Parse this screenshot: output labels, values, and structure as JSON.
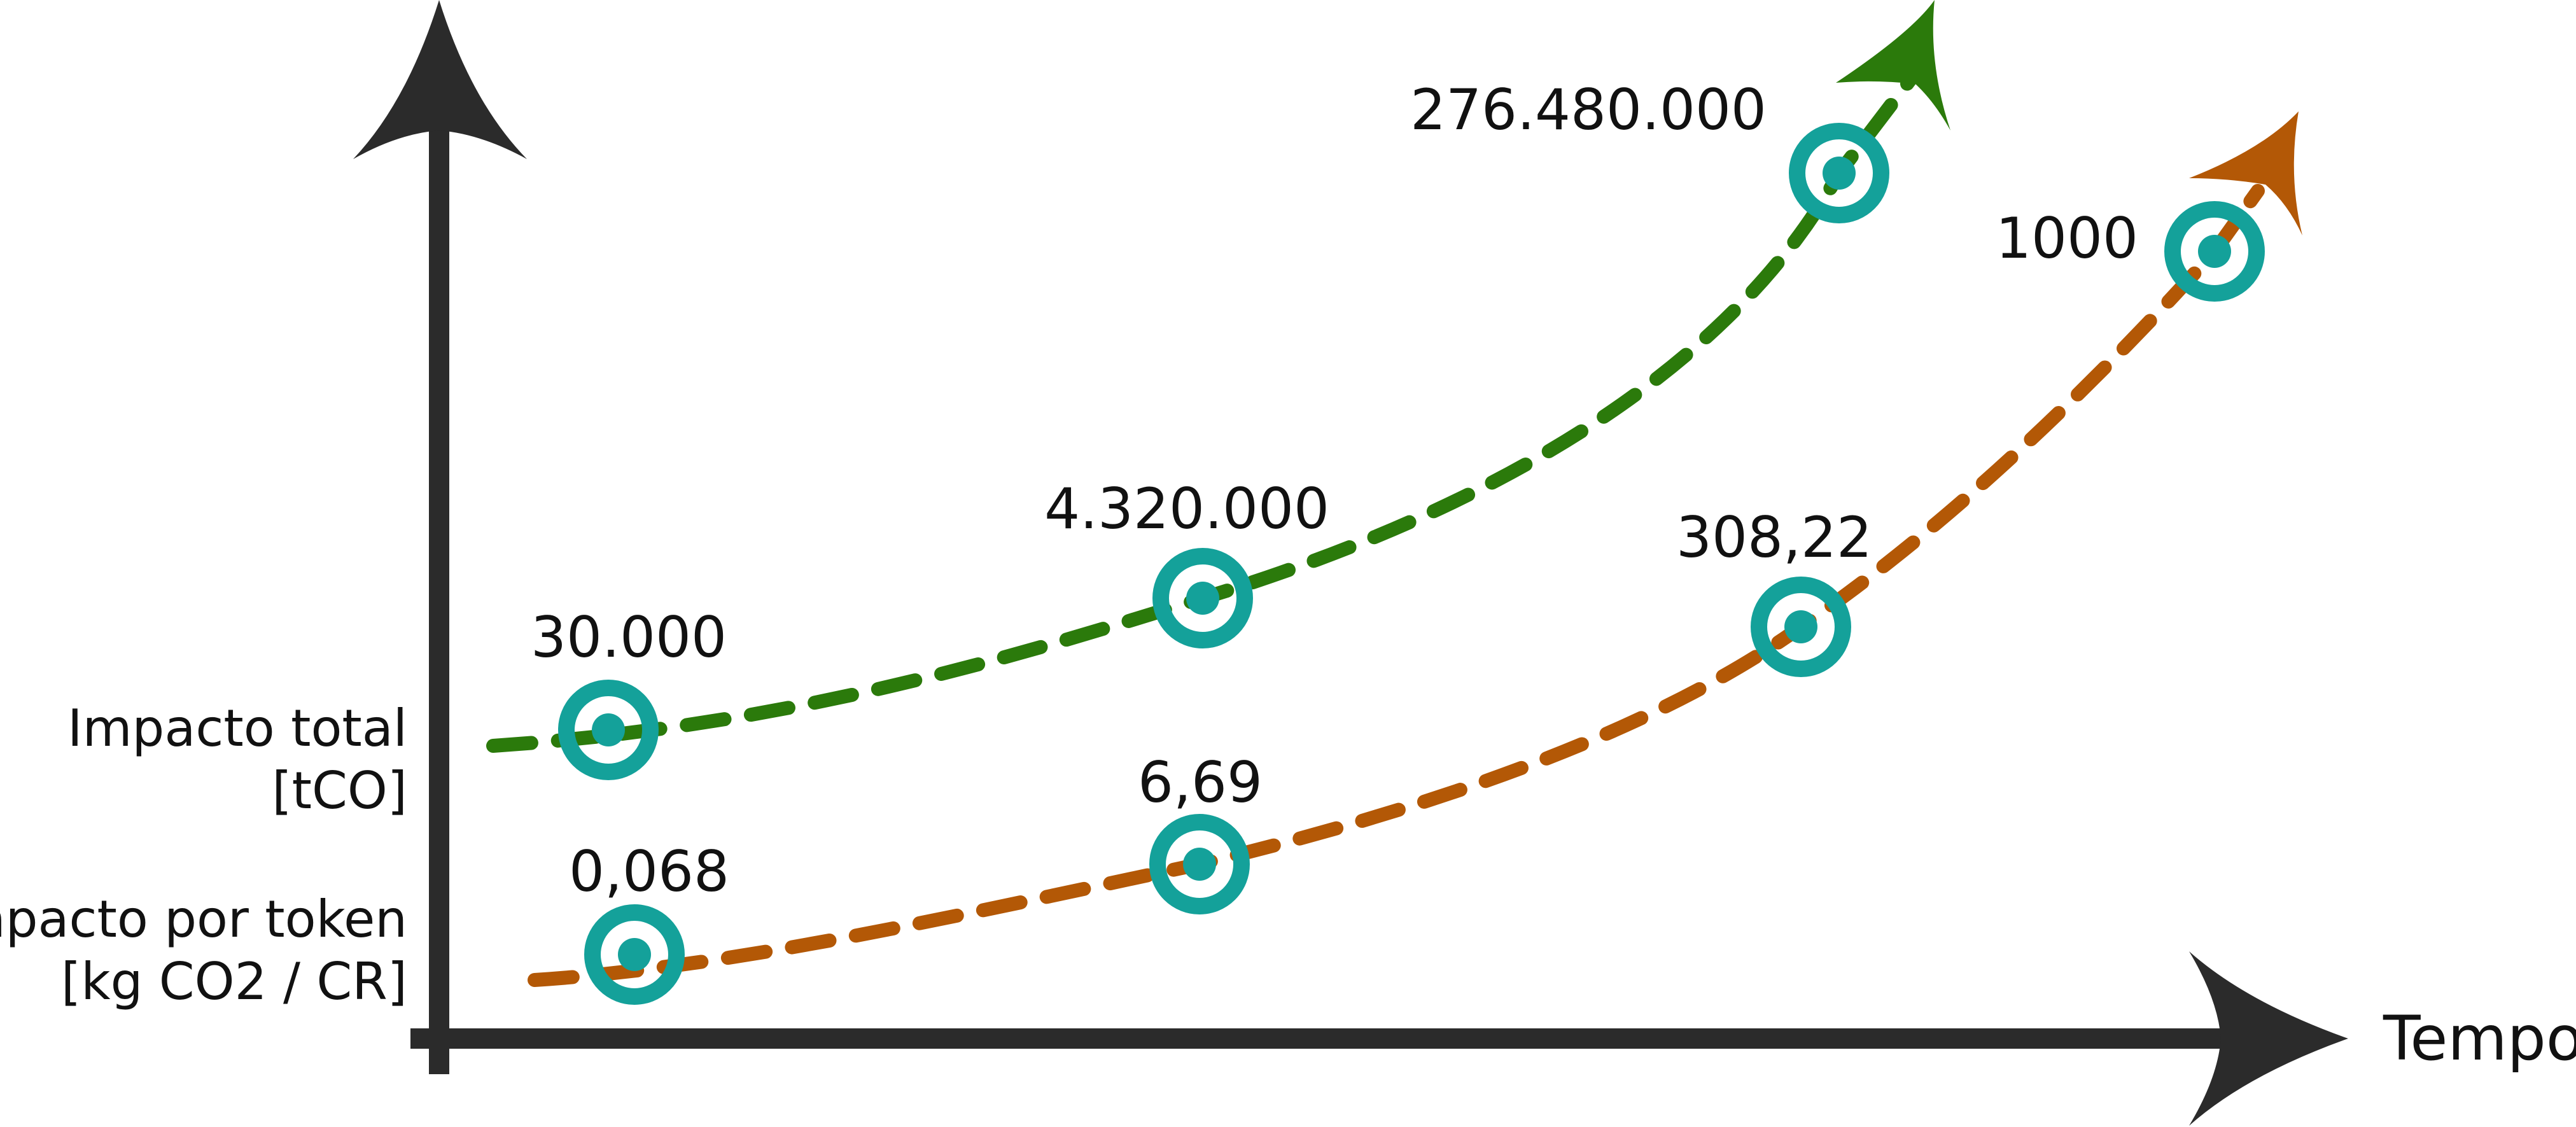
{
  "axes": {
    "x_label": "Tempo",
    "y_label_total_line1": "Impacto total",
    "y_label_total_line2": "[tCO]",
    "y_label_token_line1": "Impacto por token",
    "y_label_token_line2": "[kg CO2 / CR]",
    "color": "#2b2b2b"
  },
  "series": [
    {
      "id": "impacto-total",
      "color": "#2b7a0b",
      "values": [
        "30.000",
        "4.320.000",
        "276.480.000"
      ]
    },
    {
      "id": "impacto-por-token",
      "color": "#b35806",
      "values": [
        "0,068",
        "6,69",
        "308,22",
        "1000"
      ]
    }
  ],
  "marker_color": "#14a19a"
}
